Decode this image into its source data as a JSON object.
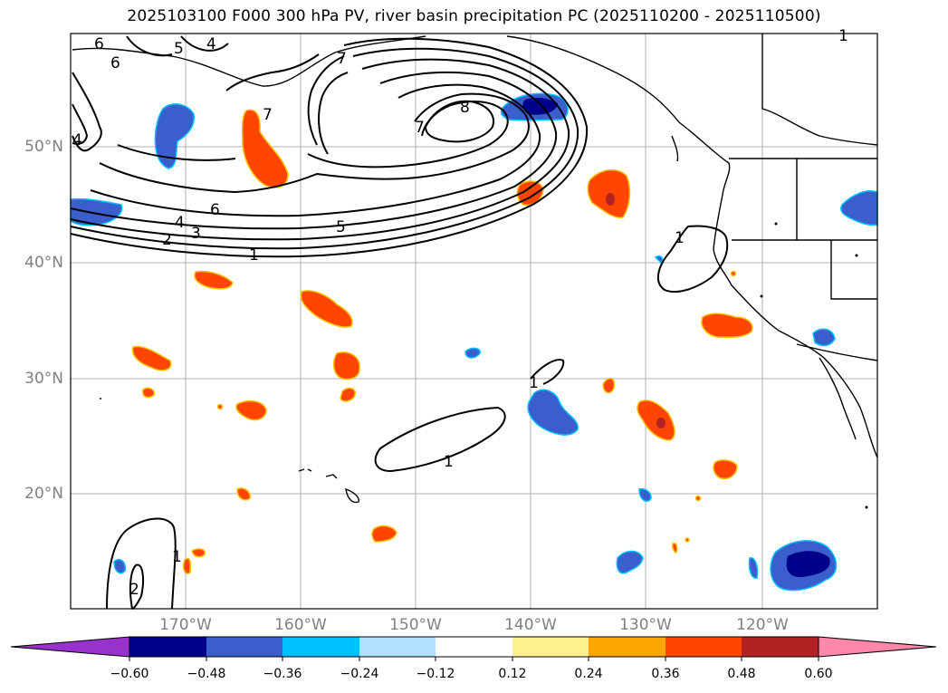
{
  "title": "2025103100 F000 300 hPa PV, river basin precipitation PC (2025110200 - 2025110500)",
  "map": {
    "lat_labels": [
      "50°N",
      "40°N",
      "30°N",
      "20°N"
    ],
    "lon_labels": [
      "170°W",
      "160°W",
      "150°W",
      "140°W",
      "130°W",
      "120°W"
    ],
    "contour_labels": [
      "6",
      "6",
      "5",
      "4",
      "7",
      "7",
      "7",
      "8",
      "6",
      "4",
      "3",
      "2",
      "1",
      "5",
      "4",
      "1",
      "1",
      "1",
      "1",
      "2",
      "1"
    ]
  },
  "colorbar": {
    "tick_labels": [
      "−0.60",
      "−0.48",
      "−0.36",
      "−0.24",
      "−0.12",
      "0.12",
      "0.24",
      "0.36",
      "0.48",
      "0.60"
    ],
    "colors": [
      "#9932cc",
      "#00008b",
      "#3a5fcd",
      "#00bfff",
      "#b0e2ff",
      "#ffffff",
      "#fff08f",
      "#ffa500",
      "#ff4500",
      "#b22222",
      "#ff88aa"
    ]
  }
}
